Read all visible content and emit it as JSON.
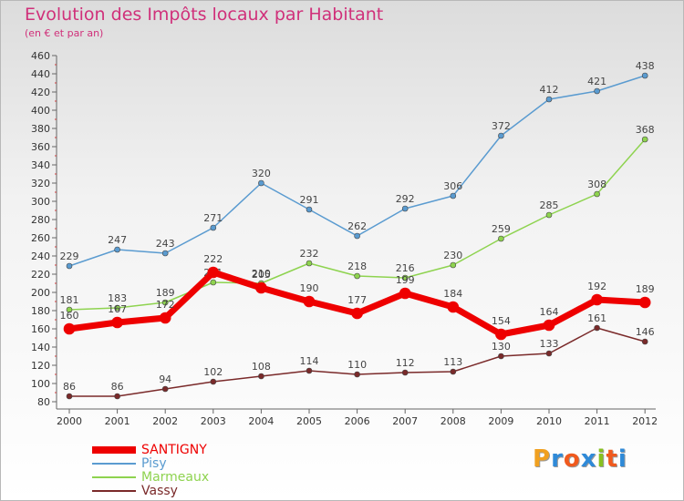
{
  "title": "Evolution des Impôts locaux par Habitant",
  "subtitle": "(en € et par an)",
  "brand": {
    "letters": [
      "P",
      "r",
      "o",
      "x",
      "i",
      "t",
      "i"
    ],
    "colors": [
      "#f0a020",
      "#2f8ad8",
      "#f05a1e",
      "#2f8ad8",
      "#88c020",
      "#f05a1e",
      "#2f8ad8"
    ]
  },
  "chart_data": {
    "type": "line",
    "x": [
      "2000",
      "2001",
      "2002",
      "2003",
      "2004",
      "2005",
      "2006",
      "2007",
      "2008",
      "2009",
      "2010",
      "2011",
      "2012"
    ],
    "ylim": [
      80,
      460
    ],
    "yticks": [
      80,
      100,
      120,
      140,
      160,
      180,
      200,
      220,
      240,
      260,
      280,
      300,
      320,
      340,
      360,
      380,
      400,
      420,
      440,
      460
    ],
    "grid": false,
    "legend": "bottom-left",
    "series": [
      {
        "name": "Pisy",
        "color": "#5a9bd0",
        "values": [
          229,
          247,
          243,
          271,
          320,
          291,
          262,
          292,
          306,
          372,
          412,
          421,
          438
        ]
      },
      {
        "name": "Marmeaux",
        "color": "#8ed34f",
        "values": [
          181,
          183,
          189,
          211,
          210,
          232,
          218,
          216,
          230,
          259,
          285,
          308,
          368
        ]
      },
      {
        "name": "Vassy",
        "color": "#7a2a2a",
        "values": [
          86,
          86,
          94,
          102,
          108,
          114,
          110,
          112,
          113,
          130,
          133,
          161,
          146
        ]
      },
      {
        "name": "SANTIGNY",
        "color": "#ee0000",
        "values": [
          160,
          167,
          172,
          222,
          205,
          190,
          177,
          199,
          184,
          154,
          164,
          192,
          189
        ]
      }
    ],
    "labels": {
      "Pisy": [
        "229",
        "247",
        "243",
        "271",
        "320",
        "291",
        "262",
        "292",
        "306",
        "372",
        "412",
        "421",
        "438"
      ],
      "Marmeaux": [
        "181",
        "183",
        "189",
        "211",
        "210",
        "232",
        "218",
        "216",
        "230",
        "259",
        "285",
        "308",
        "368"
      ],
      "Vassy": [
        "86",
        "86",
        "94",
        "102",
        "108",
        "114",
        "110",
        "112",
        "113",
        "130",
        "133",
        "161",
        "146"
      ],
      "SANTIGNY": [
        "160",
        "167",
        "172",
        "222",
        "205",
        "190",
        "177",
        "199",
        "184",
        "154",
        "164",
        "192",
        "189"
      ]
    },
    "legend_order": [
      "SANTIGNY",
      "Pisy",
      "Marmeaux",
      "Vassy"
    ]
  }
}
